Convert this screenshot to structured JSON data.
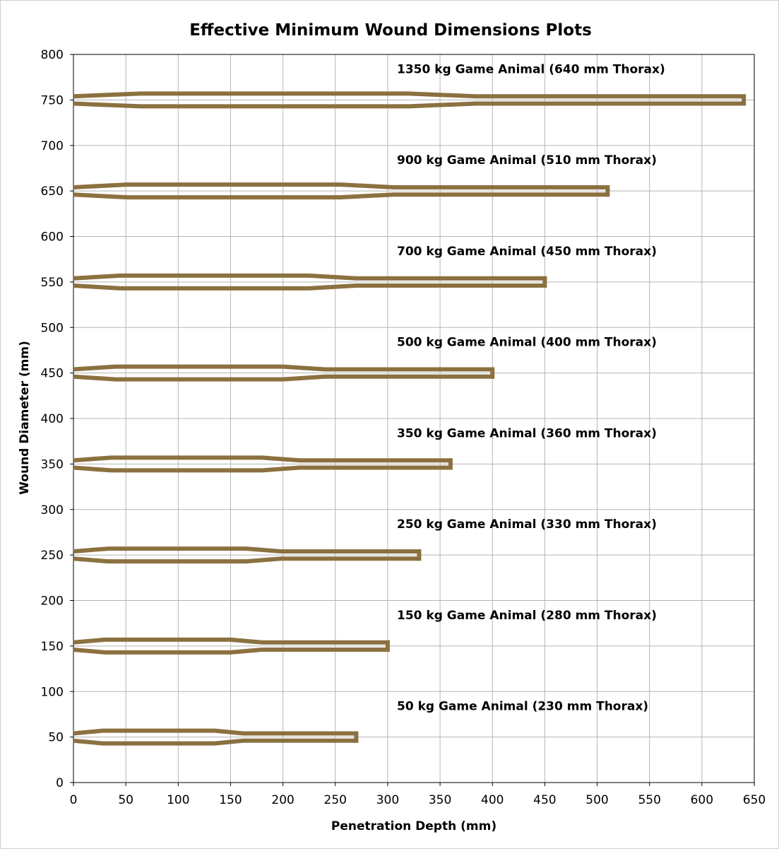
{
  "chart_data": {
    "type": "line",
    "title": "Effective Minimum Wound Dimensions Plots",
    "xlabel": "Penetration Depth (mm)",
    "ylabel": "Wound Diameter (mm)",
    "xlim": [
      0,
      650
    ],
    "ylim": [
      0,
      800
    ],
    "x_ticks": [
      "0",
      "50",
      "100",
      "150",
      "200",
      "250",
      "300",
      "350",
      "400",
      "450",
      "500",
      "550",
      "600",
      "650"
    ],
    "y_ticks": [
      "0",
      "50",
      "100",
      "150",
      "200",
      "250",
      "300",
      "350",
      "400",
      "450",
      "500",
      "550",
      "600",
      "650",
      "700",
      "750",
      "800"
    ],
    "grid": true,
    "line_color": "#8B7140",
    "series": [
      {
        "label": "50 kg Game Animal (230 mm Thorax)",
        "center": 50,
        "thorax": 230,
        "total_depth": 270,
        "upper": [
          [
            0,
            54
          ],
          [
            28,
            57
          ],
          [
            135,
            57
          ],
          [
            162,
            54
          ],
          [
            270,
            54
          ]
        ],
        "lower": [
          [
            0,
            46
          ],
          [
            28,
            43
          ],
          [
            135,
            43
          ],
          [
            162,
            46
          ],
          [
            270,
            46
          ]
        ]
      },
      {
        "label": "150 kg Game Animal (280 mm Thorax)",
        "center": 150,
        "thorax": 280,
        "total_depth": 300,
        "upper": [
          [
            0,
            154
          ],
          [
            30,
            157
          ],
          [
            150,
            157
          ],
          [
            180,
            154
          ],
          [
            300,
            154
          ]
        ],
        "lower": [
          [
            0,
            146
          ],
          [
            30,
            143
          ],
          [
            150,
            143
          ],
          [
            180,
            146
          ],
          [
            300,
            146
          ]
        ]
      },
      {
        "label": "250 kg Game Animal (330 mm Thorax)",
        "center": 250,
        "thorax": 330,
        "total_depth": 330,
        "upper": [
          [
            0,
            254
          ],
          [
            33,
            257
          ],
          [
            165,
            257
          ],
          [
            198,
            254
          ],
          [
            330,
            254
          ]
        ],
        "lower": [
          [
            0,
            246
          ],
          [
            33,
            243
          ],
          [
            165,
            243
          ],
          [
            198,
            246
          ],
          [
            330,
            246
          ]
        ]
      },
      {
        "label": "350 kg Game Animal (360 mm Thorax)",
        "center": 350,
        "thorax": 360,
        "total_depth": 360,
        "upper": [
          [
            0,
            354
          ],
          [
            36,
            357
          ],
          [
            180,
            357
          ],
          [
            216,
            354
          ],
          [
            360,
            354
          ]
        ],
        "lower": [
          [
            0,
            346
          ],
          [
            36,
            343
          ],
          [
            180,
            343
          ],
          [
            216,
            346
          ],
          [
            360,
            346
          ]
        ]
      },
      {
        "label": "500 kg Game Animal (400 mm Thorax)",
        "center": 450,
        "thorax": 400,
        "total_depth": 400,
        "upper": [
          [
            0,
            454
          ],
          [
            40,
            457
          ],
          [
            200,
            457
          ],
          [
            240,
            454
          ],
          [
            400,
            454
          ]
        ],
        "lower": [
          [
            0,
            446
          ],
          [
            40,
            443
          ],
          [
            200,
            443
          ],
          [
            240,
            446
          ],
          [
            400,
            446
          ]
        ]
      },
      {
        "label": "700 kg Game Animal (450 mm Thorax)",
        "center": 550,
        "thorax": 450,
        "total_depth": 450,
        "upper": [
          [
            0,
            554
          ],
          [
            45,
            557
          ],
          [
            225,
            557
          ],
          [
            270,
            554
          ],
          [
            450,
            554
          ]
        ],
        "lower": [
          [
            0,
            546
          ],
          [
            45,
            543
          ],
          [
            225,
            543
          ],
          [
            270,
            546
          ],
          [
            450,
            546
          ]
        ]
      },
      {
        "label": "900 kg Game Animal (510 mm Thorax)",
        "center": 650,
        "thorax": 510,
        "total_depth": 510,
        "upper": [
          [
            0,
            654
          ],
          [
            51,
            657
          ],
          [
            255,
            657
          ],
          [
            306,
            654
          ],
          [
            510,
            654
          ]
        ],
        "lower": [
          [
            0,
            646
          ],
          [
            51,
            643
          ],
          [
            255,
            643
          ],
          [
            306,
            646
          ],
          [
            510,
            646
          ]
        ]
      },
      {
        "label": "1350 kg Game Animal (640 mm Thorax)",
        "center": 750,
        "thorax": 640,
        "total_depth": 640,
        "upper": [
          [
            0,
            754
          ],
          [
            64,
            757
          ],
          [
            320,
            757
          ],
          [
            384,
            754
          ],
          [
            640,
            754
          ]
        ],
        "lower": [
          [
            0,
            746
          ],
          [
            64,
            743
          ],
          [
            320,
            743
          ],
          [
            384,
            746
          ],
          [
            640,
            746
          ]
        ]
      }
    ]
  }
}
